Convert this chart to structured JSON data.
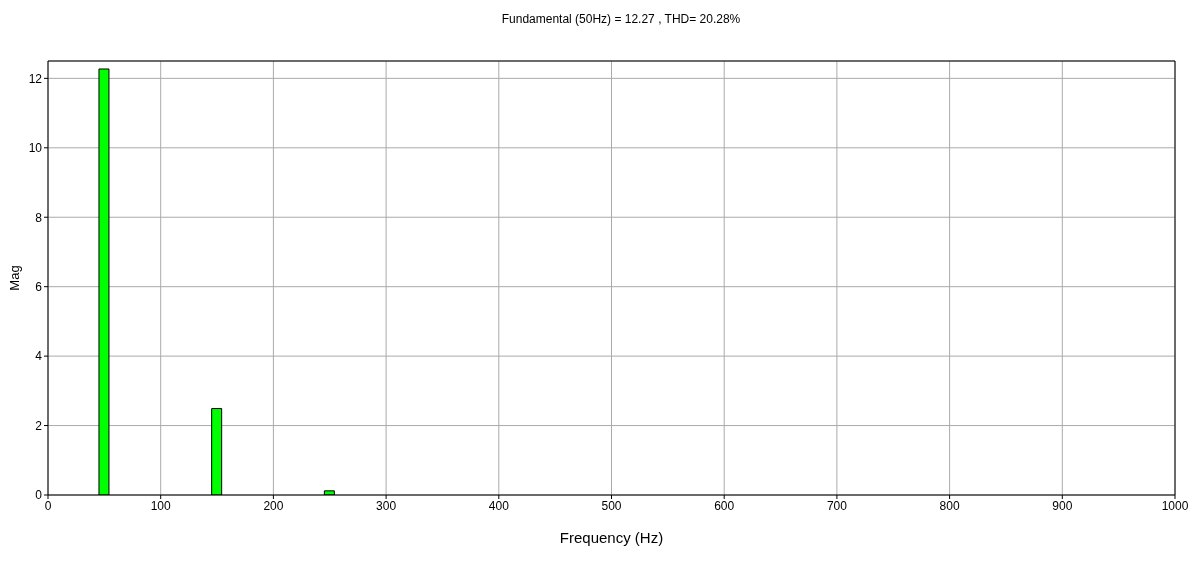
{
  "chart_data": {
    "type": "bar",
    "title": "Fundamental (50Hz) = 12.27 , THD= 20.28%",
    "xlabel": "Frequency (Hz)",
    "ylabel": "Mag",
    "x": [
      0,
      16.67,
      33.33,
      50,
      66.67,
      83.33,
      100,
      116.67,
      133.33,
      150,
      166.67,
      183.33,
      200,
      216.67,
      233.33,
      250,
      266.67,
      283.33,
      300,
      316.67,
      333.33,
      350,
      366.67,
      383.33,
      400,
      416.67,
      433.33,
      450,
      466.67,
      483.33,
      500,
      516.67,
      533.33,
      550,
      566.67,
      583.33,
      600,
      616.67,
      633.33,
      650,
      666.67,
      683.33,
      700,
      716.67,
      733.33,
      750,
      766.67,
      783.33,
      800,
      816.67,
      833.33,
      850,
      866.67,
      883.33,
      900,
      916.67,
      933.33,
      950,
      966.67,
      983.33
    ],
    "values": [
      0,
      0,
      0,
      12.27,
      0,
      0,
      0,
      0,
      0,
      2.49,
      0,
      0,
      0,
      0,
      0,
      0.12,
      0,
      0,
      0,
      0,
      0,
      0,
      0,
      0,
      0,
      0,
      0,
      0,
      0,
      0,
      0,
      0,
      0,
      0,
      0,
      0,
      0,
      0,
      0,
      0,
      0,
      0,
      0,
      0,
      0,
      0,
      0,
      0,
      0,
      0,
      0,
      0,
      0,
      0,
      0,
      0,
      0,
      0,
      0,
      0
    ],
    "color": "#00ff00",
    "xlim": [
      0,
      1000
    ],
    "xticks": [
      0,
      100,
      200,
      300,
      400,
      500,
      600,
      700,
      800,
      900,
      1000
    ],
    "ylim": [
      0,
      12.5
    ],
    "yticks": [
      0,
      2,
      4,
      6,
      8,
      10,
      12
    ],
    "grid": true
  }
}
